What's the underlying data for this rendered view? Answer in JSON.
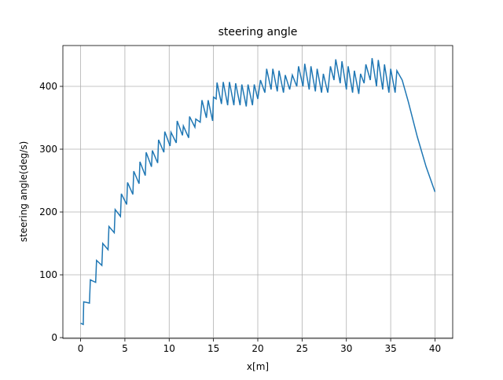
{
  "chart_data": {
    "type": "line",
    "title": "steering angle",
    "xlabel": "x[m]",
    "ylabel": "steering angle(deg/s)",
    "xlim": [
      -2,
      42
    ],
    "ylim": [
      -1.2,
      465
    ],
    "xticks": [
      0,
      5,
      10,
      15,
      20,
      25,
      30,
      35,
      40
    ],
    "yticks": [
      0,
      100,
      200,
      300,
      400
    ],
    "grid": true,
    "series": [
      {
        "name": "steering angle",
        "color": "#1f77b4",
        "x": [
          0,
          0.3,
          0.35,
          1.0,
          1.1,
          1.7,
          1.8,
          2.4,
          2.5,
          3.1,
          3.2,
          3.8,
          3.9,
          4.5,
          4.6,
          5.2,
          5.3,
          5.9,
          6.0,
          6.6,
          6.7,
          7.3,
          7.4,
          8.0,
          8.1,
          8.7,
          8.8,
          9.4,
          9.5,
          10.1,
          10.2,
          10.8,
          10.9,
          11.5,
          11.6,
          12.2,
          12.3,
          12.9,
          13.0,
          13.5,
          13.7,
          14.2,
          14.4,
          14.9,
          15.0,
          15.3,
          15.4,
          15.9,
          16.1,
          16.6,
          16.8,
          17.3,
          17.5,
          18.0,
          18.2,
          18.7,
          18.9,
          19.4,
          19.6,
          20.0,
          20.3,
          20.8,
          21.0,
          21.5,
          21.7,
          22.2,
          22.4,
          22.9,
          23.1,
          23.6,
          23.9,
          24.4,
          24.6,
          25.1,
          25.3,
          25.8,
          26.0,
          26.5,
          26.7,
          27.2,
          27.4,
          27.9,
          28.2,
          28.6,
          28.8,
          29.3,
          29.5,
          30.0,
          30.2,
          30.7,
          30.9,
          31.4,
          31.6,
          32.0,
          32.2,
          32.7,
          32.9,
          33.4,
          33.6,
          34.1,
          34.3,
          34.8,
          35.0,
          35.5,
          35.7,
          36.3,
          37,
          38,
          39,
          40
        ],
        "values": [
          23,
          21,
          57,
          55,
          92,
          88,
          123,
          115,
          150,
          140,
          177,
          167,
          204,
          193,
          229,
          212,
          247,
          228,
          265,
          245,
          280,
          258,
          295,
          272,
          298,
          278,
          315,
          295,
          328,
          305,
          327,
          310,
          345,
          322,
          337,
          318,
          352,
          335,
          348,
          343,
          378,
          350,
          378,
          345,
          383,
          380,
          406,
          372,
          407,
          370,
          407,
          370,
          405,
          370,
          403,
          368,
          403,
          370,
          403,
          380,
          410,
          390,
          428,
          395,
          428,
          392,
          425,
          390,
          418,
          395,
          418,
          400,
          432,
          400,
          436,
          395,
          432,
          392,
          428,
          390,
          420,
          390,
          432,
          410,
          443,
          405,
          440,
          395,
          432,
          390,
          425,
          388,
          420,
          405,
          435,
          410,
          445,
          400,
          442,
          395,
          435,
          390,
          428,
          390,
          425,
          410,
          375,
          320,
          272,
          232
        ]
      }
    ]
  }
}
